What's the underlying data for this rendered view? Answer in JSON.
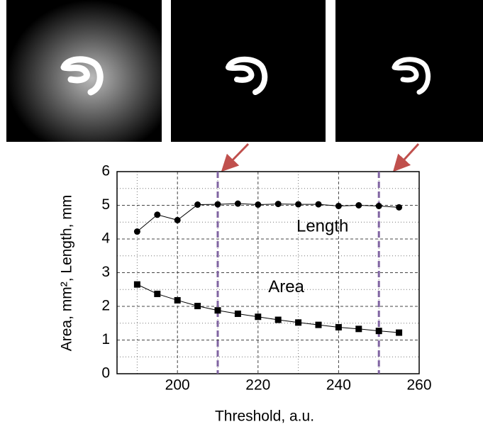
{
  "chart_data": {
    "type": "line",
    "xlabel": "Threshold, a.u.",
    "ylabel": "Area, mm², Length, mm",
    "x": [
      190,
      195,
      200,
      205,
      210,
      215,
      220,
      225,
      230,
      235,
      240,
      245,
      250,
      255
    ],
    "series": [
      {
        "name": "Length",
        "color": "#000000",
        "marker": "circle",
        "values": [
          4.22,
          4.72,
          4.56,
          5.02,
          5.03,
          5.05,
          5.02,
          5.04,
          5.03,
          5.03,
          4.98,
          5.0,
          4.98,
          4.94
        ]
      },
      {
        "name": "Area",
        "color": "#000000",
        "marker": "square",
        "values": [
          2.65,
          2.37,
          2.18,
          2.01,
          1.88,
          1.78,
          1.69,
          1.6,
          1.52,
          1.45,
          1.38,
          1.33,
          1.27,
          1.22
        ]
      }
    ],
    "xlim": [
      185,
      260
    ],
    "xticks": [
      200,
      220,
      240,
      260
    ],
    "xminorticks": [
      190,
      210,
      230,
      250
    ],
    "ylim": [
      0,
      6
    ],
    "yticks": [
      0,
      1,
      2,
      3,
      4,
      5,
      6
    ],
    "yminorticks": [
      0.5,
      1.5,
      2.5,
      3.5,
      4.5,
      5.5
    ],
    "grid": true,
    "vlines": [
      210,
      250
    ],
    "vline_color": "#8064a2"
  }
}
